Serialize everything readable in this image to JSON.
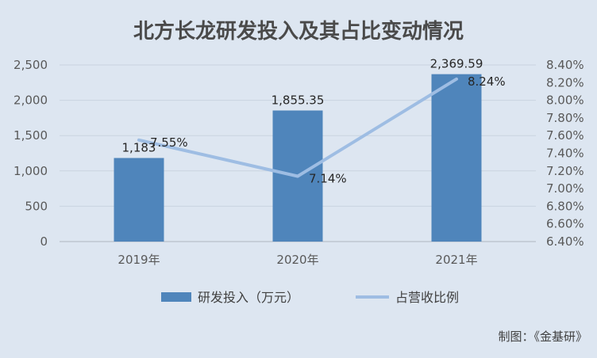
{
  "colors": {
    "background": "#dde6f1",
    "bar": "#4f85bb",
    "line": "#9ebde3",
    "grid": "#c9d3e0",
    "axis": "#b0b7c0"
  },
  "credit": "制图：《金基研》",
  "chart_data": {
    "type": "bar",
    "title": "北方长龙研发投入及其占比变动情况",
    "categories": [
      "2019年",
      "2020年",
      "2021年"
    ],
    "series": [
      {
        "name": "研发投入（万元）",
        "type": "bar",
        "axis": "left",
        "values": [
          1183,
          1855.35,
          2369.59
        ],
        "labels": [
          "1,183",
          "1,855.35",
          "2,369.59"
        ]
      },
      {
        "name": "占营收比例",
        "type": "line",
        "axis": "right",
        "values": [
          7.55,
          7.14,
          8.24
        ],
        "labels": [
          "7.55%",
          "7.14%",
          "8.24%"
        ]
      }
    ],
    "y_left": {
      "lim": [
        0,
        2500
      ],
      "ticks": [
        0,
        500,
        1000,
        1500,
        2000,
        2500
      ],
      "tick_labels": [
        "0",
        "500",
        "1,000",
        "1,500",
        "2,000",
        "2,500"
      ]
    },
    "y_right": {
      "lim": [
        6.4,
        8.4
      ],
      "ticks": [
        6.4,
        6.6,
        6.8,
        7.0,
        7.2,
        7.4,
        7.6,
        7.8,
        8.0,
        8.2,
        8.4
      ],
      "tick_labels": [
        "6.40%",
        "6.60%",
        "6.80%",
        "7.00%",
        "7.20%",
        "7.40%",
        "7.60%",
        "7.80%",
        "8.00%",
        "8.20%",
        "8.40%"
      ]
    },
    "grid": true,
    "legend_position": "bottom"
  }
}
